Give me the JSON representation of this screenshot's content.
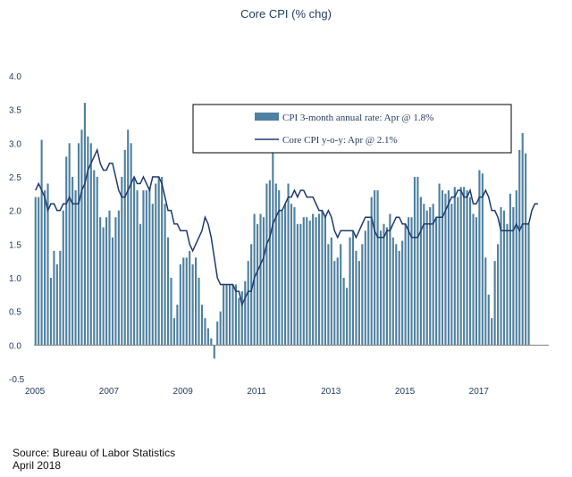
{
  "chart_data": {
    "type": "bar",
    "title": "Core CPI (% chg)",
    "ylim": [
      -0.5,
      4.0
    ],
    "yticks": [
      "4.0",
      "3.5",
      "3.0",
      "2.5",
      "2.0",
      "1.5",
      "1.0",
      "0.5",
      "0.0",
      "-0.5"
    ],
    "xticks": [
      "2005",
      "2007",
      "2009",
      "2011",
      "2013",
      "2015",
      "2017"
    ],
    "x_start": "2005-01",
    "legend_placement": "top-right",
    "colors": {
      "bars": "#4f81a0",
      "line": "#1f3a6f"
    },
    "series": [
      {
        "name": "CPI 3-month annual rate: Apr @ 1.8%",
        "type": "bar",
        "values": [
          2.2,
          2.2,
          3.05,
          2.3,
          2.4,
          1.0,
          1.4,
          1.2,
          1.4,
          2.0,
          2.8,
          3.0,
          2.5,
          2.3,
          3.0,
          3.2,
          3.6,
          3.1,
          3.0,
          2.6,
          2.5,
          1.9,
          1.75,
          1.9,
          2.0,
          1.6,
          1.9,
          2.0,
          2.5,
          2.9,
          3.2,
          3.0,
          2.5,
          2.3,
          1.8,
          2.3,
          2.3,
          2.35,
          2.1,
          2.4,
          2.5,
          2.5,
          2.1,
          1.6,
          1.0,
          0.4,
          0.6,
          1.2,
          1.3,
          1.3,
          1.4,
          1.2,
          1.3,
          1.0,
          0.6,
          0.4,
          0.25,
          0.1,
          -0.2,
          0.35,
          0.5,
          0.9,
          0.9,
          0.9,
          0.9,
          0.9,
          0.7,
          0.8,
          0.95,
          1.25,
          1.5,
          1.95,
          1.8,
          1.95,
          1.9,
          2.4,
          2.45,
          2.9,
          2.4,
          2.3,
          2.0,
          2.1,
          2.4,
          2.1,
          2.05,
          1.8,
          1.8,
          1.9,
          1.9,
          1.85,
          1.95,
          1.9,
          1.95,
          2.0,
          1.9,
          1.5,
          1.6,
          1.25,
          1.3,
          1.5,
          1.0,
          0.85,
          1.6,
          1.7,
          1.4,
          1.25,
          1.5,
          1.7,
          1.85,
          2.2,
          2.3,
          2.3,
          1.7,
          1.8,
          1.75,
          1.95,
          1.6,
          1.5,
          1.4,
          1.55,
          1.8,
          1.9,
          1.9,
          2.5,
          2.5,
          2.2,
          2.1,
          2.0,
          2.05,
          2.1,
          1.9,
          2.4,
          2.3,
          2.25,
          2.3,
          2.1,
          2.35,
          2.2,
          2.35,
          2.35,
          2.3,
          2.2,
          1.95,
          1.9,
          2.6,
          2.55,
          1.3,
          0.75,
          0.4,
          1.25,
          1.5,
          2.05,
          2.0,
          1.8,
          2.25,
          2.05,
          2.3,
          2.9,
          3.15,
          2.85,
          1.8
        ]
      },
      {
        "name": "Core CPI y-o-y: Apr @ 2.1%",
        "type": "line",
        "values": [
          2.3,
          2.4,
          2.3,
          2.2,
          2.0,
          2.1,
          2.1,
          2.0,
          2.0,
          2.1,
          2.1,
          2.2,
          2.1,
          2.1,
          2.1,
          2.3,
          2.4,
          2.6,
          2.7,
          2.8,
          2.9,
          2.7,
          2.6,
          2.6,
          2.7,
          2.7,
          2.5,
          2.3,
          2.2,
          2.2,
          2.3,
          2.4,
          2.5,
          2.4,
          2.4,
          2.5,
          2.4,
          2.3,
          2.5,
          2.5,
          2.5,
          2.4,
          2.2,
          2.0,
          2.0,
          1.8,
          1.8,
          1.7,
          1.7,
          1.7,
          1.5,
          1.4,
          1.5,
          1.6,
          1.7,
          1.9,
          1.8,
          1.6,
          1.3,
          1.0,
          0.9,
          0.9,
          0.9,
          0.9,
          0.9,
          0.8,
          0.8,
          0.6,
          0.7,
          0.8,
          0.8,
          1.0,
          1.1,
          1.2,
          1.3,
          1.5,
          1.6,
          1.8,
          1.9,
          2.0,
          2.0,
          2.1,
          2.2,
          2.2,
          2.3,
          2.2,
          2.3,
          2.3,
          2.2,
          2.2,
          2.2,
          2.1,
          2.0,
          2.0,
          1.9,
          2.0,
          1.9,
          1.7,
          1.6,
          1.7,
          1.7,
          1.7,
          1.7,
          1.7,
          1.6,
          1.7,
          1.8,
          1.9,
          1.9,
          1.9,
          1.7,
          1.6,
          1.6,
          1.6,
          1.7,
          1.7,
          1.8,
          1.9,
          1.9,
          1.8,
          1.8,
          1.7,
          1.6,
          1.6,
          1.6,
          1.7,
          1.8,
          1.8,
          1.8,
          1.8,
          1.9,
          1.9,
          1.9,
          2.0,
          2.1,
          2.2,
          2.2,
          2.3,
          2.3,
          2.2,
          2.2,
          2.3,
          2.1,
          2.1,
          2.2,
          2.2,
          2.3,
          2.2,
          2.0,
          2.0,
          1.9,
          1.7,
          1.7,
          1.7,
          1.7,
          1.7,
          1.8,
          1.7,
          1.8,
          1.8,
          1.8,
          2.0,
          2.1,
          2.1
        ]
      }
    ]
  },
  "source": {
    "line1": "Source: Bureau of Labor Statistics",
    "line2": "April 2018"
  }
}
